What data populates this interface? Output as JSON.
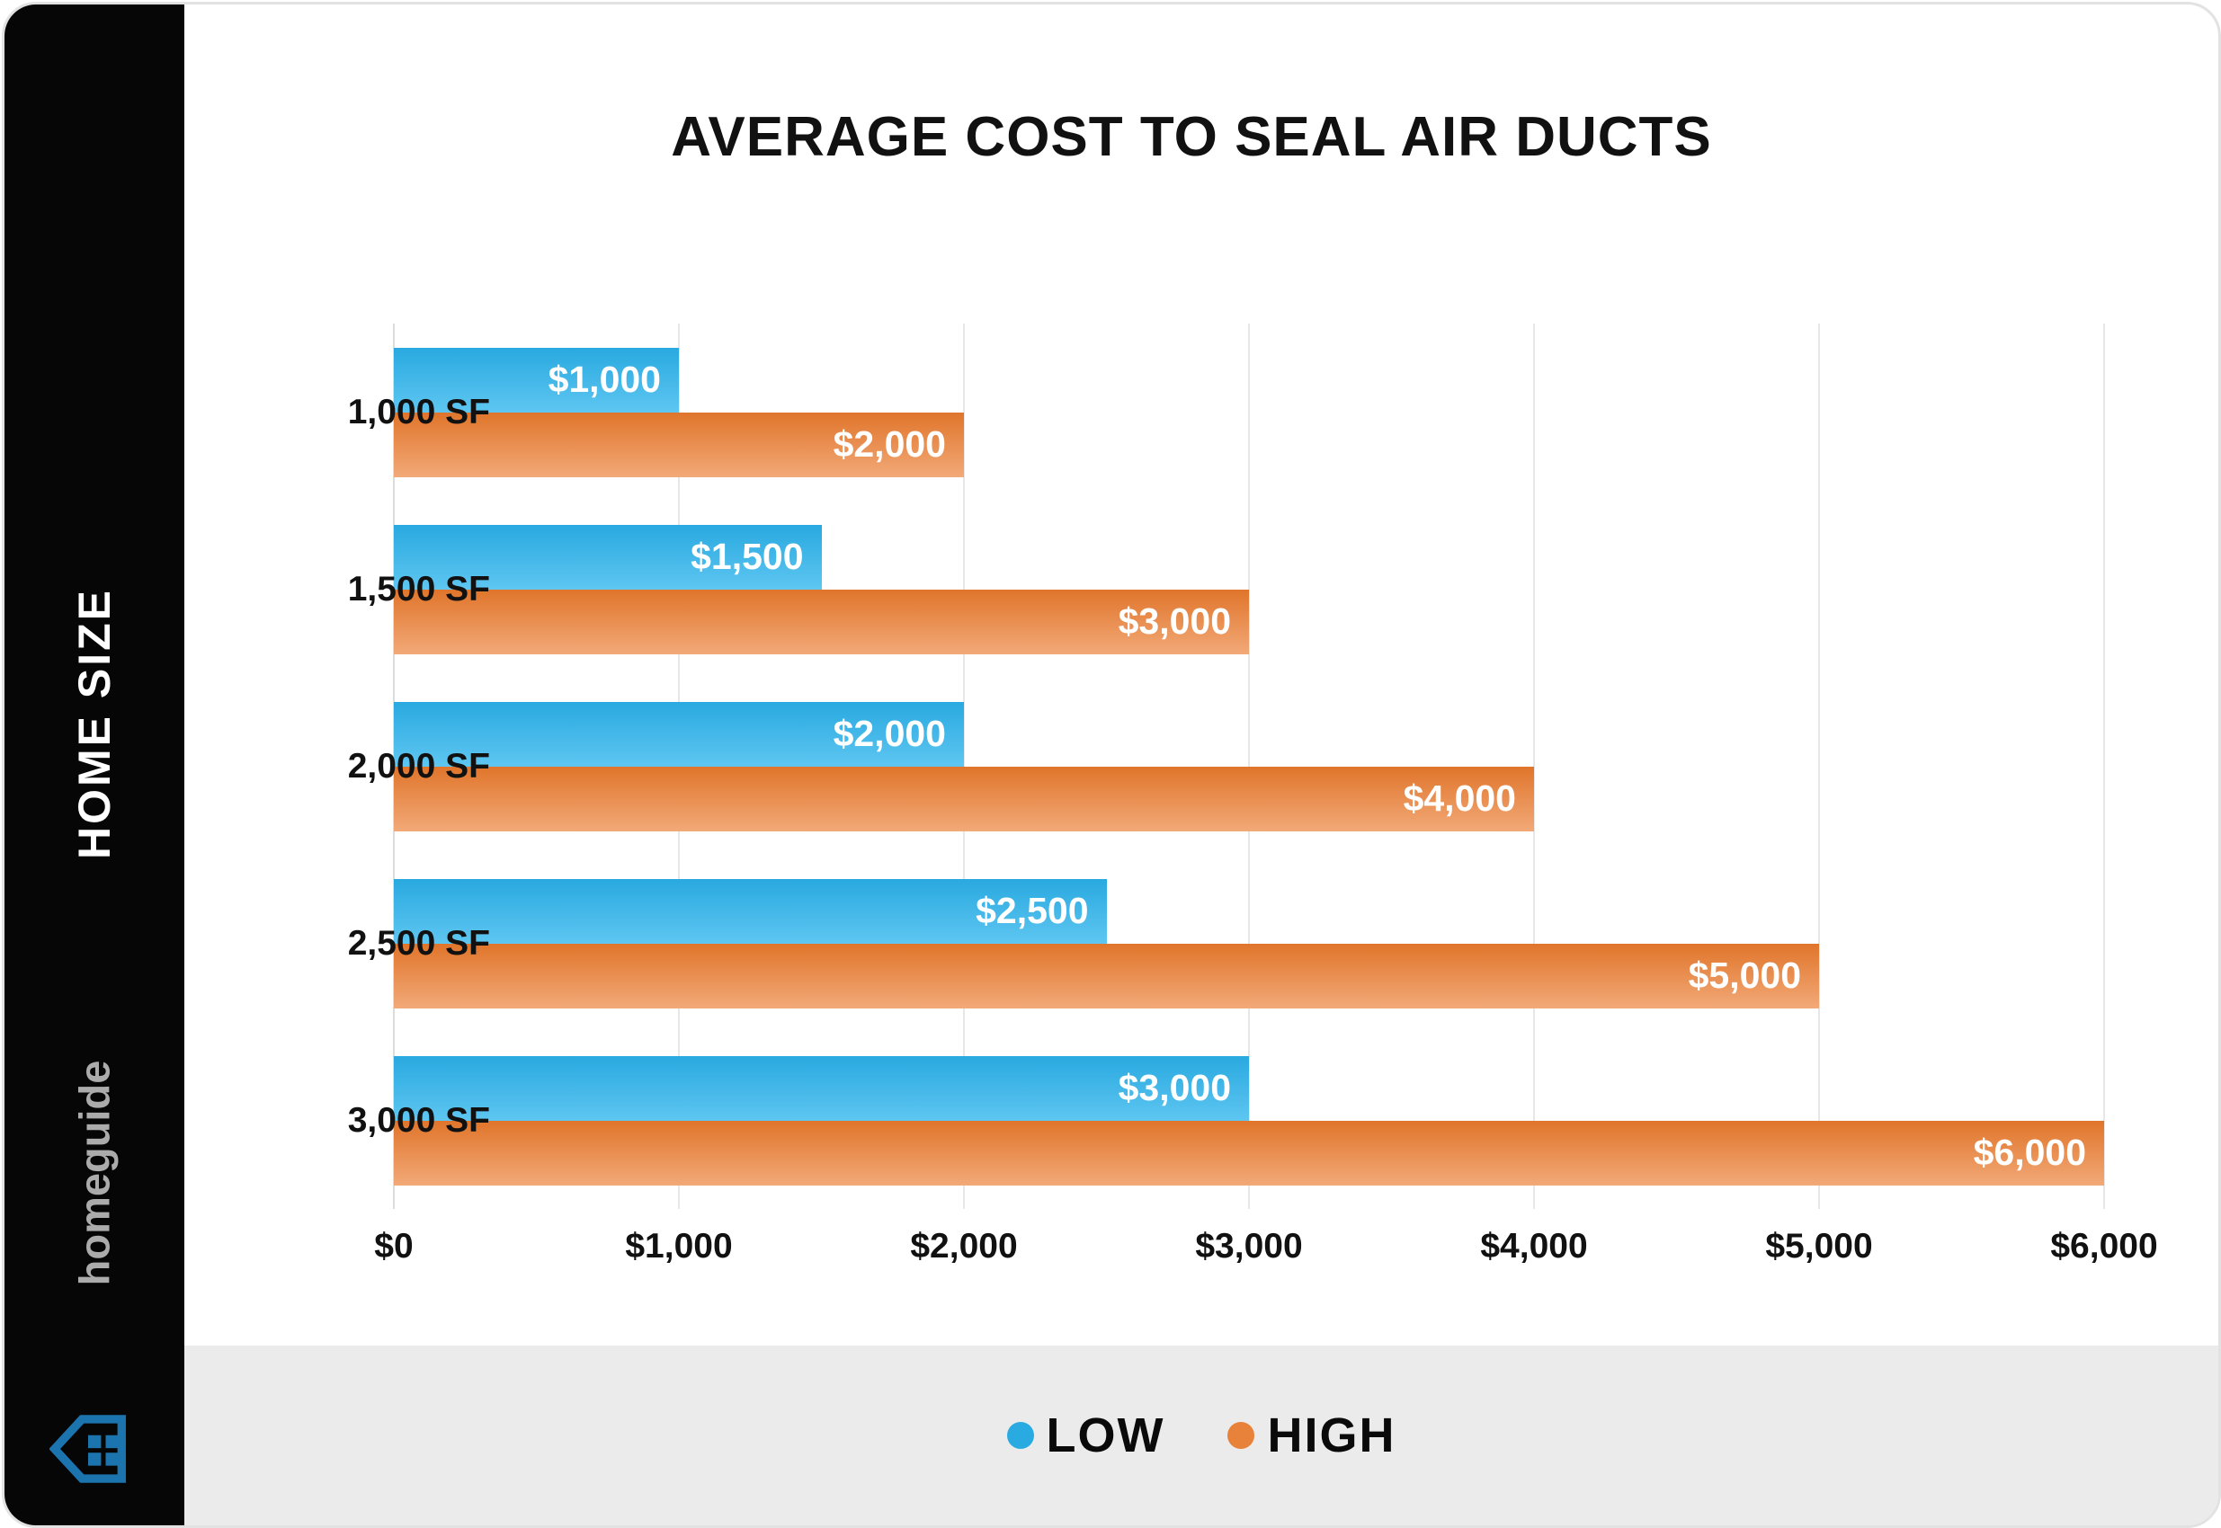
{
  "title": "AVERAGE COST TO SEAL AIR DUCTS",
  "sidebar": {
    "axis_title": "HOME SIZE",
    "brand": "homeguide"
  },
  "legend": {
    "items": [
      {
        "label": "LOW",
        "color": "#29abe2"
      },
      {
        "label": "HIGH",
        "color": "#e8823a"
      }
    ],
    "position": "bottom"
  },
  "colors": {
    "low_top": "#29a9e0",
    "low_bottom": "#5ec6f1",
    "high_top": "#e0752b",
    "high_bottom": "#f2a978",
    "sidebar_bg": "#060606",
    "legend_band_bg": "#ebebeb",
    "logo_blue": "#1b74ae",
    "brand_gray": "#ababab"
  },
  "chart_data": {
    "type": "bar",
    "orientation": "horizontal",
    "title": "AVERAGE COST TO SEAL AIR DUCTS",
    "ylabel": "HOME SIZE",
    "xlabel": "",
    "categories": [
      "1,000 SF",
      "1,500 SF",
      "2,000 SF",
      "2,500 SF",
      "3,000 SF"
    ],
    "series": [
      {
        "name": "LOW",
        "values": [
          1000,
          1500,
          2000,
          2500,
          3000
        ],
        "labels": [
          "$1,000",
          "$1,500",
          "$2,000",
          "$2,500",
          "$3,000"
        ]
      },
      {
        "name": "HIGH",
        "values": [
          2000,
          3000,
          4000,
          5000,
          6000
        ],
        "labels": [
          "$2,000",
          "$3,000",
          "$4,000",
          "$5,000",
          "$6,000"
        ]
      }
    ],
    "xlim": [
      0,
      6000
    ],
    "x_ticks": [
      {
        "value": 0,
        "label": "$0"
      },
      {
        "value": 1000,
        "label": "$1,000"
      },
      {
        "value": 2000,
        "label": "$2,000"
      },
      {
        "value": 3000,
        "label": "$3,000"
      },
      {
        "value": 4000,
        "label": "$4,000"
      },
      {
        "value": 5000,
        "label": "$5,000"
      },
      {
        "value": 6000,
        "label": "$6,000"
      }
    ],
    "grid": true,
    "legend_position": "bottom"
  }
}
